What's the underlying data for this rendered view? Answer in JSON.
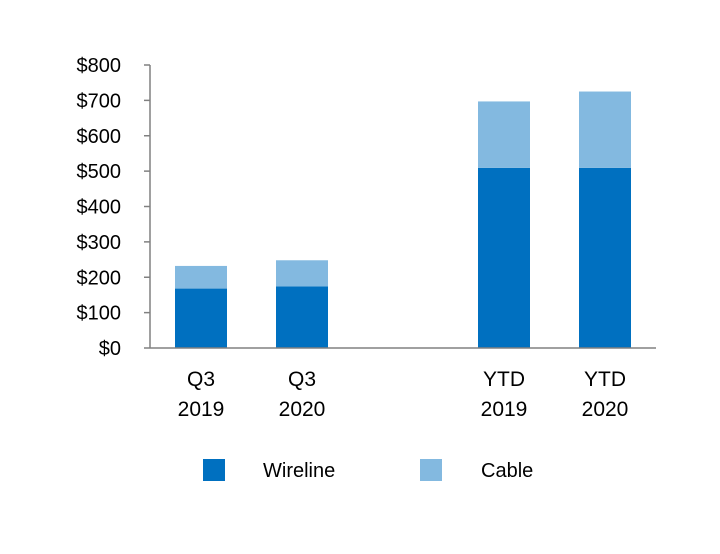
{
  "chart_data": {
    "type": "bar",
    "stacked": true,
    "title": "",
    "xlabel": "",
    "ylabel": "",
    "ylim": [
      0,
      800
    ],
    "y_ticks": [
      "$0",
      "$100",
      "$200",
      "$300",
      "$400",
      "$500",
      "$600",
      "$700",
      "$800"
    ],
    "categories": [
      {
        "line1": "Q3",
        "line2": "2019"
      },
      {
        "line1": "Q3",
        "line2": "2020"
      },
      {
        "line1": "YTD",
        "line2": "2019"
      },
      {
        "line1": "YTD",
        "line2": "2020"
      }
    ],
    "series": [
      {
        "name": "Wireline",
        "color": "#0070c0",
        "values": [
          168,
          174,
          509,
          509
        ]
      },
      {
        "name": "Cable",
        "color": "#83b9e0",
        "values": [
          64,
          74,
          188,
          216
        ]
      }
    ],
    "legend_position": "bottom",
    "grid": false
  }
}
